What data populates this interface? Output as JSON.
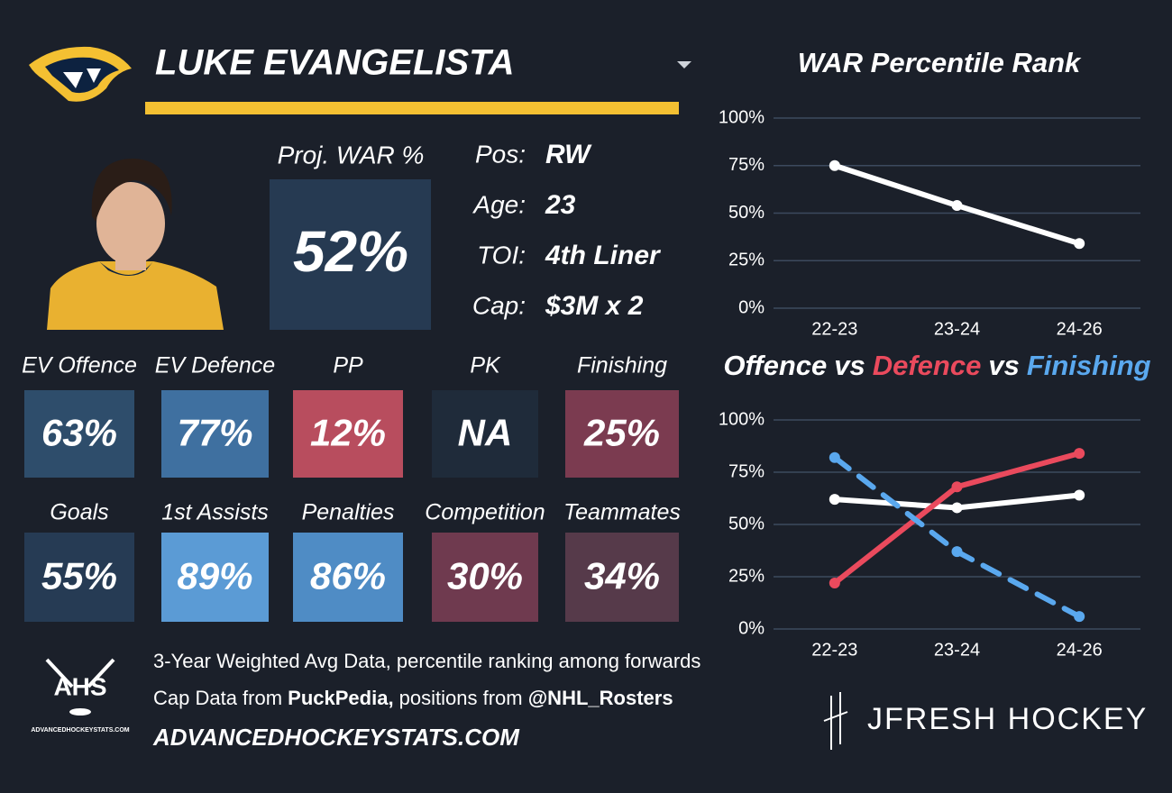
{
  "player": {
    "name": "LUKE EVANGELISTA"
  },
  "projection": {
    "label": "Proj. WAR %",
    "value": "52%"
  },
  "bio": [
    {
      "label": "Pos:",
      "value": "RW"
    },
    {
      "label": "Age:",
      "value": "23"
    },
    {
      "label": "TOI:",
      "value": "4th Liner"
    },
    {
      "label": "Cap:",
      "value": "$3M x 2"
    }
  ],
  "tiles": [
    {
      "label": "EV Offence",
      "value": "63%",
      "color": "#2e4d6b"
    },
    {
      "label": "EV Defence",
      "value": "77%",
      "color": "#3f70a0"
    },
    {
      "label": "PP",
      "value": "12%",
      "color": "#b84d5e"
    },
    {
      "label": "PK",
      "value": "NA",
      "color": "#1f2b3a"
    },
    {
      "label": "Finishing",
      "value": "25%",
      "color": "#7b3b50"
    },
    {
      "label": "Goals",
      "value": "55%",
      "color": "#263b54"
    },
    {
      "label": "1st Assists",
      "value": "89%",
      "color": "#5b9bd5"
    },
    {
      "label": "Penalties",
      "value": "86%",
      "color": "#4f8cc5"
    },
    {
      "label": "Competition",
      "value": "30%",
      "color": "#6f3a4f"
    },
    {
      "label": "Teammates",
      "value": "34%",
      "color": "#563a4a"
    }
  ],
  "footer": {
    "logo_text": "AHS",
    "logo_small": "ADVANCEDHOCKEYSTATS.COM",
    "lines": [
      [
        {
          "text": "3-Year Weighted Avg Data, percentile ranking among forwards",
          "bold": false
        }
      ],
      [
        {
          "text": "Cap Data from ",
          "bold": false
        },
        {
          "text": "PuckPedia,",
          "bold": true
        },
        {
          "text": " positions from ",
          "bold": false
        },
        {
          "text": "@NHL_Rosters",
          "bold": true
        }
      ]
    ],
    "site": "ADVANCEDHOCKEYSTATS.COM",
    "brand": "JFRESH HOCKEY"
  },
  "chart_data": [
    {
      "type": "line",
      "title": "WAR Percentile Rank",
      "categories": [
        "22-23",
        "23-24",
        "24-26"
      ],
      "series": [
        {
          "name": null,
          "color": "#ffffff",
          "values": [
            75,
            54,
            34
          ]
        }
      ],
      "ylim": [
        0,
        100
      ],
      "yticks": [
        {
          "value": 0,
          "label": "0%"
        },
        {
          "value": 25,
          "label": "25%"
        },
        {
          "value": 50,
          "label": "50%"
        },
        {
          "value": 75,
          "label": "75%"
        },
        {
          "value": 100,
          "label": "100%"
        }
      ],
      "grid": true
    },
    {
      "type": "line",
      "title_joiner": "vs",
      "categories": [
        "22-23",
        "23-24",
        "24-26"
      ],
      "series": [
        {
          "name": "Offence",
          "color": "#ffffff",
          "values": [
            62,
            58,
            64
          ],
          "dashed": false
        },
        {
          "name": "Defence",
          "color": "#ea4a5d",
          "values": [
            22,
            68,
            84
          ],
          "dashed": false
        },
        {
          "name": "Finishing",
          "color": "#5aa8ee",
          "values": [
            82,
            37,
            6
          ],
          "dashed": true
        }
      ],
      "ylim": [
        0,
        100
      ],
      "yticks": [
        {
          "value": 0,
          "label": "0%"
        },
        {
          "value": 25,
          "label": "25%"
        },
        {
          "value": 50,
          "label": "50%"
        },
        {
          "value": 75,
          "label": "75%"
        },
        {
          "value": 100,
          "label": "100%"
        }
      ],
      "grid": true
    }
  ]
}
